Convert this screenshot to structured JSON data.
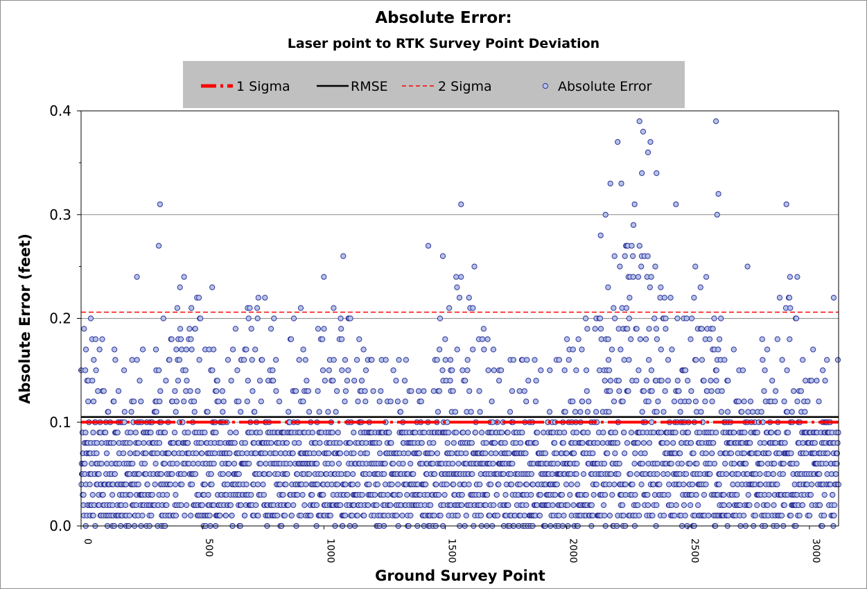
{
  "chart_data": {
    "type": "scatter",
    "title": "Absolute Error:",
    "subtitle": "Laser point to RTK Survey Point Deviation",
    "xlabel": "Ground Survey Point",
    "ylabel": "Absolute  Error  (feet)",
    "xlim": [
      0,
      3120
    ],
    "ylim": [
      0,
      0.4
    ],
    "x_ticks": [
      "0",
      "500",
      "1000",
      "1500",
      "2000",
      "2500",
      "3000"
    ],
    "y_ticks": [
      "0.0",
      "0.1",
      "0.2",
      "0.3",
      "0.4"
    ],
    "grid": "horizontal",
    "legend_position": "top",
    "colors": {
      "sigma1": "#ff0000",
      "rmse": "#000000",
      "sigma2": "#ff0000",
      "points_fill": "#b4c4ea",
      "points_edge": "#2e2e96",
      "legend_bg": "#c0c0c0",
      "gridline": "#8c8c8c"
    },
    "series": [
      {
        "name": "1 Sigma",
        "kind": "line",
        "style": "dash-dot-thick",
        "y": 0.1
      },
      {
        "name": "RMSE",
        "kind": "line",
        "style": "solid",
        "y": 0.105
      },
      {
        "name": "2 Sigma",
        "kind": "line",
        "style": "dashed",
        "y": 0.206
      },
      {
        "name": "Absolute Error",
        "kind": "scatter",
        "approx_count": 3120,
        "notable_high_points": [
          {
            "x": 325,
            "y": 0.31
          },
          {
            "x": 320,
            "y": 0.27
          },
          {
            "x": 1080,
            "y": 0.26
          },
          {
            "x": 1430,
            "y": 0.27
          },
          {
            "x": 1490,
            "y": 0.26
          },
          {
            "x": 1565,
            "y": 0.31
          },
          {
            "x": 2210,
            "y": 0.37
          },
          {
            "x": 2300,
            "y": 0.39
          },
          {
            "x": 2315,
            "y": 0.38
          },
          {
            "x": 2345,
            "y": 0.37
          },
          {
            "x": 2335,
            "y": 0.36
          },
          {
            "x": 2370,
            "y": 0.34
          },
          {
            "x": 2310,
            "y": 0.34
          },
          {
            "x": 2615,
            "y": 0.39
          },
          {
            "x": 2625,
            "y": 0.32
          },
          {
            "x": 2620,
            "y": 0.3
          },
          {
            "x": 2905,
            "y": 0.31
          },
          {
            "x": 2180,
            "y": 0.33
          },
          {
            "x": 2225,
            "y": 0.33
          },
          {
            "x": 2280,
            "y": 0.31
          },
          {
            "x": 2275,
            "y": 0.29
          },
          {
            "x": 2140,
            "y": 0.28
          },
          {
            "x": 2160,
            "y": 0.3
          },
          {
            "x": 2450,
            "y": 0.31
          },
          {
            "x": 2530,
            "y": 0.25
          },
          {
            "x": 2745,
            "y": 0.25
          },
          {
            "x": 1620,
            "y": 0.25
          },
          {
            "x": 1565,
            "y": 0.24
          },
          {
            "x": 1545,
            "y": 0.24
          },
          {
            "x": 230,
            "y": 0.24
          },
          {
            "x": 1000,
            "y": 0.24
          },
          {
            "x": 2575,
            "y": 0.24
          },
          {
            "x": 2920,
            "y": 0.24
          },
          {
            "x": 2950,
            "y": 0.24
          },
          {
            "x": 3100,
            "y": 0.22
          },
          {
            "x": 540,
            "y": 0.23
          },
          {
            "x": 905,
            "y": 0.21
          },
          {
            "x": 20,
            "y": 0.17
          },
          {
            "x": 40,
            "y": 0.2
          }
        ]
      }
    ]
  }
}
